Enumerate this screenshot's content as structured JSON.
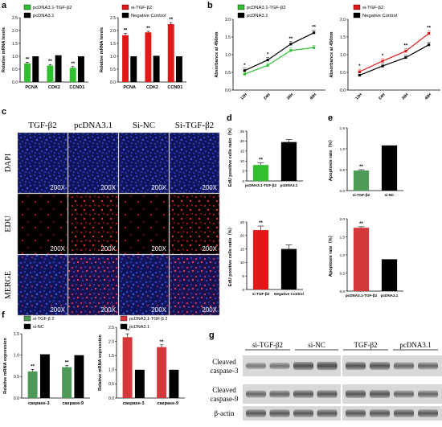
{
  "panels": {
    "a": {
      "label": "a",
      "left": {
        "legend": [
          "pcDNA3.1-TGF-β2",
          "pcDNA3.1"
        ],
        "ylabel": "Relative mRNA levels",
        "categories": [
          "PCNA",
          "CDK2",
          "CCND1"
        ],
        "ticks": [
          "0.0",
          "0.5",
          "1.0",
          "1.5",
          "2.0",
          "2.5"
        ]
      },
      "right": {
        "legend": [
          "si-TGF-β2",
          "Negative Control"
        ],
        "ylabel": "Relative mRNA levels",
        "categories": [
          "PCNA",
          "CDK2",
          "CCND1"
        ],
        "ticks": [
          "0.0",
          "0.5",
          "1.0",
          "1.5",
          "2.0",
          "2.5"
        ]
      }
    },
    "b": {
      "label": "b",
      "left": {
        "legend": [
          "pcDNA3.1-TGF-β2",
          "pcDNA3.1"
        ],
        "ylabel": "Absorbance at 450nm",
        "categories": [
          "12H",
          "24H",
          "36H",
          "48H"
        ],
        "ticks": [
          "0.0",
          "0.5",
          "1.0",
          "1.5",
          "2.0"
        ]
      },
      "right": {
        "legend": [
          "si-TGF-β2",
          "Negative Control"
        ],
        "ylabel": "Absorbance at 450nm",
        "categories": [
          "12H",
          "24H",
          "36H",
          "48H"
        ],
        "ticks": [
          "0.0",
          "0.5",
          "1.0",
          "1.5",
          "2.0"
        ]
      }
    },
    "c": {
      "label": "c",
      "columns": [
        "TGF-β2",
        "pcDNA3.1",
        "Si-NC",
        "Si-TGF-β2"
      ],
      "rows": [
        "DAPI",
        "EDU",
        "MERGE"
      ],
      "magnification": "200X"
    },
    "d": {
      "label": "d",
      "top": {
        "ylabel": "EdU positive cells ratio（%）",
        "categories": [
          "pcDNA3.1-TGF-β2",
          "pcDNA3.1"
        ],
        "ticks": [
          "0",
          "5",
          "10",
          "15",
          "20",
          "25"
        ]
      },
      "bottom": {
        "ylabel": "EdU positive cells ratio（%）",
        "categories": [
          "si-TGF-β2",
          "Negative Control"
        ],
        "ticks": [
          "0",
          "5",
          "10",
          "15",
          "20",
          "25"
        ]
      }
    },
    "e": {
      "label": "e",
      "top": {
        "ylabel": "Apoptosis rate（%）",
        "categories": [
          "si-TGF-β2",
          "si-NC"
        ],
        "ticks": [
          "0.0",
          "0.5",
          "1.0",
          "1.5"
        ]
      },
      "bottom": {
        "ylabel": "Apoptosis rate（%）",
        "categories": [
          "pcDNA3.1-TGF-β2",
          "pcDNA3.1"
        ],
        "ticks": [
          "0.0",
          "0.5",
          "1.0",
          "1.5",
          "2.0"
        ]
      }
    },
    "f": {
      "label": "f",
      "left": {
        "legend": [
          "si-TGF-β 2",
          "si-NC"
        ],
        "ylabel": "Relative mRNA expression",
        "categories": [
          "caspase-3",
          "caspase-9"
        ],
        "ticks": [
          "0.0",
          "0.5",
          "1.0",
          "1.5"
        ]
      },
      "right": {
        "legend": [
          "pcDNA3.1-TGF-β 2",
          "pcDNA3.1"
        ],
        "ylabel": "Relative mRNA expression",
        "categories": [
          "caspase-3",
          "caspase-9"
        ],
        "ticks": [
          "0.0",
          "0.5",
          "1.0",
          "1.5",
          "2.0",
          "2.5"
        ]
      }
    },
    "g": {
      "label": "g",
      "groups": [
        "si-TGF-β2",
        "si-NC",
        "TGF-β2",
        "pcDNA3.1"
      ],
      "bands": [
        "Cleaved caspase-3",
        "Cleaved caspase-9",
        "β-actin"
      ]
    },
    "significance": "**",
    "significance_single": "*"
  },
  "colors": {
    "green": "#2fbf2f",
    "green_f": "#4c9a55",
    "red": "#e01818",
    "red_f": "#d6373a",
    "black": "#000000"
  },
  "chart_data": [
    {
      "panel": "a-left",
      "type": "bar",
      "categories": [
        "PCNA",
        "CDK2",
        "CCND1"
      ],
      "series": [
        {
          "name": "pcDNA3.1-TGF-β2",
          "values": [
            0.72,
            0.64,
            0.55
          ]
        },
        {
          "name": "pcDNA3.1",
          "values": [
            1.0,
            1.04,
            1.0
          ]
        }
      ],
      "ylim": [
        0,
        2.5
      ]
    },
    {
      "panel": "a-right",
      "type": "bar",
      "categories": [
        "PCNA",
        "CDK2",
        "CCND1"
      ],
      "series": [
        {
          "name": "si-TGF-β2",
          "values": [
            1.82,
            1.93,
            2.25
          ]
        },
        {
          "name": "Negative Control",
          "values": [
            1.0,
            1.02,
            1.0
          ]
        }
      ],
      "ylim": [
        0,
        2.5
      ]
    },
    {
      "panel": "b-left",
      "type": "line",
      "categories": [
        "12H",
        "24H",
        "36H",
        "48H"
      ],
      "series": [
        {
          "name": "pcDNA3.1-TGF-β2",
          "values": [
            0.45,
            0.7,
            1.12,
            1.2
          ]
        },
        {
          "name": "pcDNA3.1",
          "values": [
            0.55,
            0.85,
            1.3,
            1.62
          ]
        }
      ],
      "ylim": [
        0,
        2.0
      ]
    },
    {
      "panel": "b-right",
      "type": "line",
      "categories": [
        "12H",
        "24H",
        "36H",
        "48H"
      ],
      "series": [
        {
          "name": "si-TGF-β2",
          "values": [
            0.52,
            0.82,
            1.1,
            1.6
          ]
        },
        {
          "name": "Negative Control",
          "values": [
            0.42,
            0.68,
            0.92,
            1.28
          ]
        }
      ],
      "ylim": [
        0,
        2.0
      ]
    },
    {
      "panel": "d-top",
      "type": "bar",
      "categories": [
        "pcDNA3.1-TGF-β2",
        "pcDNA3.1"
      ],
      "values": [
        8,
        19.5
      ],
      "errors": [
        1,
        1.2
      ],
      "ylim": [
        0,
        25
      ]
    },
    {
      "panel": "d-bottom",
      "type": "bar",
      "categories": [
        "si-TGF-β2",
        "Negative Control"
      ],
      "values": [
        22,
        15
      ],
      "errors": [
        1.5,
        1.5
      ],
      "ylim": [
        0,
        25
      ]
    },
    {
      "panel": "e-top",
      "type": "bar",
      "categories": [
        "si-TGF-β2",
        "si-NC"
      ],
      "values": [
        0.48,
        1.08
      ],
      "errors": [
        0.02,
        0
      ],
      "ylim": [
        0,
        1.5
      ]
    },
    {
      "panel": "e-bottom",
      "type": "bar",
      "categories": [
        "pcDNA3.1-TGF-β2",
        "pcDNA3.1"
      ],
      "values": [
        1.75,
        0.88
      ],
      "errors": [
        0.03,
        0
      ],
      "ylim": [
        0,
        2.0
      ]
    },
    {
      "panel": "f-left",
      "type": "bar",
      "categories": [
        "caspase-3",
        "caspase-9"
      ],
      "series": [
        {
          "name": "si-TGF-β 2",
          "values": [
            0.62,
            0.72
          ]
        },
        {
          "name": "si-NC",
          "values": [
            1.02,
            1.0
          ]
        }
      ],
      "ylim": [
        0,
        1.5
      ]
    },
    {
      "panel": "f-right",
      "type": "bar",
      "categories": [
        "caspase-3",
        "caspase-9"
      ],
      "series": [
        {
          "name": "pcDNA3.1-TGF-β 2",
          "values": [
            2.15,
            1.8
          ]
        },
        {
          "name": "pcDNA3.1",
          "values": [
            1.0,
            1.0
          ]
        }
      ],
      "ylim": [
        0,
        2.5
      ]
    }
  ]
}
